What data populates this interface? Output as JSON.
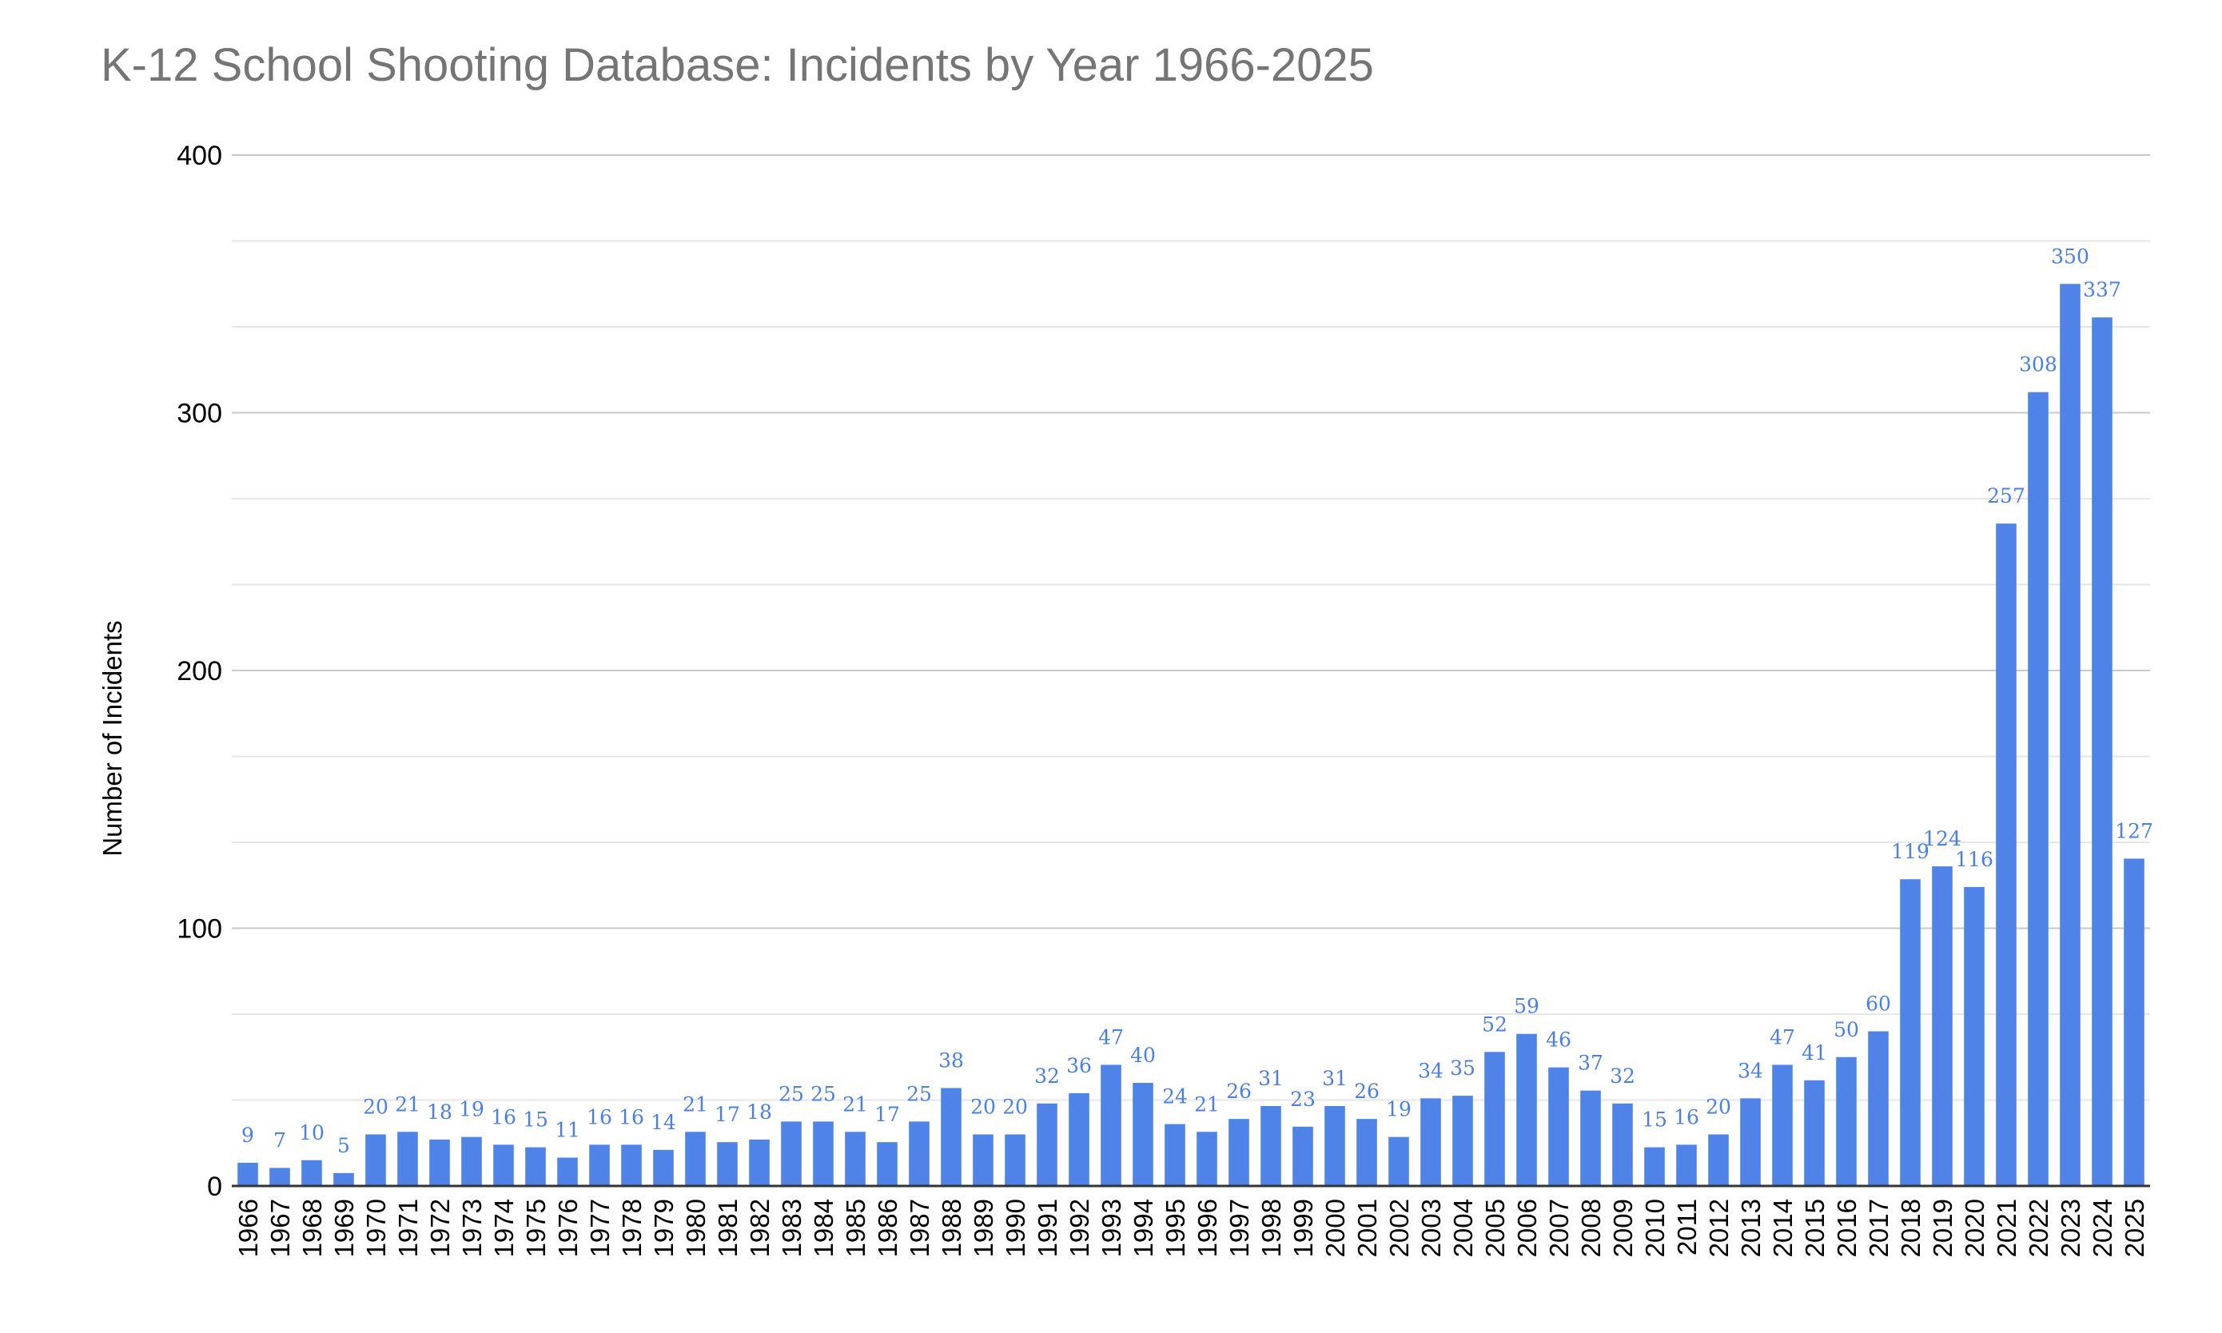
{
  "chart_data": {
    "type": "bar",
    "title": "K-12 School Shooting Database: Incidents by Year 1966-2025",
    "xlabel": "",
    "ylabel": "Number of Incidents",
    "ylim": [
      0,
      400
    ],
    "yticks": [
      "0",
      "100",
      "200",
      "300",
      "400"
    ],
    "grid": true,
    "legend": "none",
    "colors": {
      "bar": "#4f83e8",
      "data_label": "#4a7fe3",
      "major_grid": "#c8c8c8",
      "minor_grid": "#e6e6e6",
      "axis": "#333333"
    },
    "categories": [
      "1966",
      "1967",
      "1968",
      "1969",
      "1970",
      "1971",
      "1972",
      "1973",
      "1974",
      "1975",
      "1976",
      "1977",
      "1978",
      "1979",
      "1980",
      "1981",
      "1982",
      "1983",
      "1984",
      "1985",
      "1986",
      "1987",
      "1988",
      "1989",
      "1990",
      "1991",
      "1992",
      "1993",
      "1994",
      "1995",
      "1996",
      "1997",
      "1998",
      "1999",
      "2000",
      "2001",
      "2002",
      "2003",
      "2004",
      "2005",
      "2006",
      "2007",
      "2008",
      "2009",
      "2010",
      "2011",
      "2012",
      "2013",
      "2014",
      "2015",
      "2016",
      "2017",
      "2018",
      "2019",
      "2020",
      "2021",
      "2022",
      "2023",
      "2024",
      "2025"
    ],
    "values": [
      9,
      7,
      10,
      5,
      20,
      21,
      18,
      19,
      16,
      15,
      11,
      16,
      16,
      14,
      21,
      17,
      18,
      25,
      25,
      21,
      17,
      25,
      38,
      20,
      20,
      32,
      36,
      47,
      40,
      24,
      21,
      26,
      31,
      23,
      31,
      26,
      19,
      34,
      35,
      52,
      59,
      46,
      37,
      32,
      15,
      16,
      20,
      34,
      47,
      41,
      50,
      60,
      119,
      124,
      116,
      257,
      308,
      350,
      337,
      127
    ],
    "data_labels": [
      "9",
      "7",
      "10",
      "5",
      "20",
      "21",
      "18",
      "19",
      "16",
      "15",
      "11",
      "16",
      "16",
      "14",
      "21",
      "17",
      "18",
      "25",
      "25",
      "21",
      "17",
      "25",
      "38",
      "20",
      "20",
      "32",
      "36",
      "47",
      "40",
      "24",
      "21",
      "26",
      "31",
      "23",
      "31",
      "26",
      "19",
      "34",
      "35",
      "52",
      "59",
      "46",
      "37",
      "32",
      "15",
      "16",
      "20",
      "34",
      "47",
      "41",
      "50",
      "60",
      "119",
      "124",
      "116",
      "257",
      "308",
      "350",
      "337",
      "127"
    ]
  }
}
